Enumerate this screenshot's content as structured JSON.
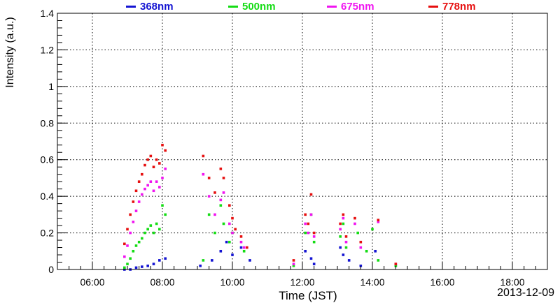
{
  "chart_data": {
    "type": "scatter",
    "xlabel": "Time (JST)",
    "ylabel": "Intensity (a.u.)",
    "date_label": "2013-12-09",
    "xlim": [
      "05:00",
      "19:00"
    ],
    "ylim": [
      0,
      1.4
    ],
    "x_ticks": [
      "06:00",
      "08:00",
      "10:00",
      "12:00",
      "14:00",
      "16:00",
      "18:00"
    ],
    "y_ticks": [
      "0",
      "0.2",
      "0.4",
      "0.6",
      "0.8",
      "1",
      "1.2",
      "1.4"
    ],
    "grid": true,
    "legend_position": "top",
    "series": [
      {
        "name": "368nm",
        "color": "#1414d2",
        "x": [
          "06:55",
          "07:05",
          "07:15",
          "07:25",
          "07:35",
          "07:45",
          "07:55",
          "08:05",
          "09:05",
          "09:25",
          "09:40",
          "09:50",
          "10:00",
          "10:15",
          "10:30",
          "12:05",
          "12:15",
          "12:20",
          "13:05",
          "13:10",
          "13:20",
          "13:40",
          "14:05",
          "14:40"
        ],
        "y": [
          0.0,
          0.0,
          0.01,
          0.015,
          0.02,
          0.03,
          0.05,
          0.06,
          0.02,
          0.05,
          0.1,
          0.15,
          0.08,
          0.12,
          0.05,
          0.1,
          0.06,
          0.03,
          0.12,
          0.08,
          0.05,
          0.02,
          0.1,
          0.02
        ]
      },
      {
        "name": "500nm",
        "color": "#14dc14",
        "x": [
          "06:55",
          "07:00",
          "07:05",
          "07:10",
          "07:15",
          "07:20",
          "07:25",
          "07:30",
          "07:35",
          "07:40",
          "07:45",
          "07:50",
          "07:55",
          "08:00",
          "08:05",
          "09:10",
          "09:20",
          "09:30",
          "09:40",
          "09:45",
          "09:55",
          "10:00",
          "10:20",
          "11:45",
          "12:05",
          "12:15",
          "12:20",
          "13:05",
          "13:10",
          "13:15",
          "13:35",
          "13:50",
          "14:00",
          "14:10",
          "14:40"
        ],
        "y": [
          0.01,
          0.03,
          0.06,
          0.1,
          0.13,
          0.15,
          0.17,
          0.2,
          0.22,
          0.24,
          0.2,
          0.25,
          0.22,
          0.35,
          0.3,
          0.05,
          0.3,
          0.2,
          0.35,
          0.25,
          0.15,
          0.2,
          0.1,
          0.02,
          0.2,
          0.3,
          0.15,
          0.18,
          0.25,
          0.12,
          0.2,
          0.1,
          0.22,
          0.05,
          0.02
        ]
      },
      {
        "name": "675nm",
        "color": "#f014f0",
        "x": [
          "06:55",
          "07:00",
          "07:05",
          "07:10",
          "07:15",
          "07:20",
          "07:25",
          "07:30",
          "07:35",
          "07:40",
          "07:45",
          "07:50",
          "07:55",
          "08:00",
          "08:05",
          "09:10",
          "09:20",
          "09:30",
          "09:40",
          "09:45",
          "09:55",
          "10:00",
          "10:15",
          "10:20",
          "11:45",
          "12:05",
          "12:10",
          "12:15",
          "12:20",
          "13:05",
          "13:10",
          "13:15",
          "13:30",
          "13:40",
          "14:10",
          "14:40"
        ],
        "y": [
          0.07,
          0.13,
          0.2,
          0.26,
          0.32,
          0.37,
          0.41,
          0.44,
          0.46,
          0.48,
          0.43,
          0.48,
          0.45,
          0.5,
          0.55,
          0.52,
          0.4,
          0.3,
          0.38,
          0.42,
          0.25,
          0.2,
          0.15,
          0.12,
          0.03,
          0.25,
          0.2,
          0.3,
          0.18,
          0.22,
          0.28,
          0.15,
          0.25,
          0.12,
          0.26,
          0.03
        ]
      },
      {
        "name": "778nm",
        "color": "#e60f0f",
        "x": [
          "06:55",
          "07:00",
          "07:05",
          "07:10",
          "07:15",
          "07:20",
          "07:25",
          "07:30",
          "07:35",
          "07:40",
          "07:45",
          "07:50",
          "07:55",
          "08:00",
          "08:05",
          "09:10",
          "09:20",
          "09:30",
          "09:40",
          "09:45",
          "09:55",
          "10:00",
          "10:05",
          "10:15",
          "10:25",
          "11:45",
          "12:05",
          "12:10",
          "12:15",
          "12:20",
          "13:05",
          "13:10",
          "13:15",
          "13:30",
          "13:40",
          "14:10",
          "14:40"
        ],
        "y": [
          0.14,
          0.22,
          0.3,
          0.37,
          0.43,
          0.48,
          0.52,
          0.57,
          0.6,
          0.62,
          0.56,
          0.6,
          0.58,
          0.68,
          0.65,
          0.62,
          0.5,
          0.42,
          0.55,
          0.5,
          0.35,
          0.28,
          0.22,
          0.18,
          0.12,
          0.05,
          0.3,
          0.25,
          0.41,
          0.2,
          0.25,
          0.3,
          0.18,
          0.28,
          0.15,
          0.27,
          0.03
        ]
      }
    ]
  }
}
